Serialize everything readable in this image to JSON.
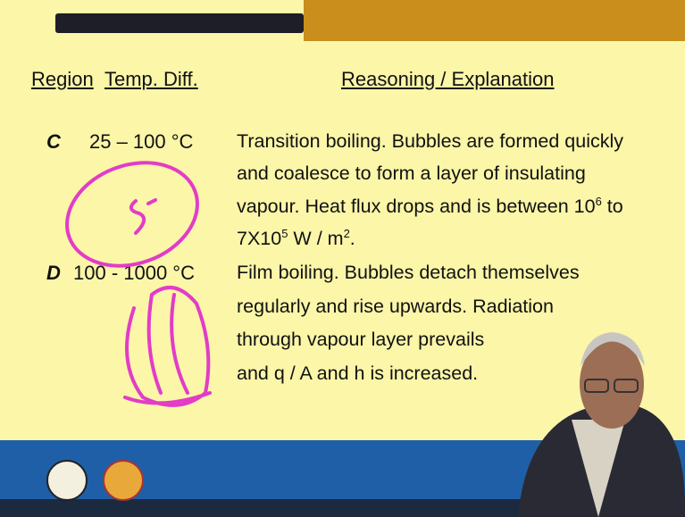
{
  "header": {
    "region": "Region",
    "temp": "Temp. Diff.",
    "reasoning": "Reasoning / Explanation"
  },
  "rows": [
    {
      "region": "C",
      "temp": "25 – 100 °C",
      "lines": [
        [
          {
            "text": "Transition boiling. Bubbles are formed quickly"
          }
        ],
        [
          {
            "text": "and coalesce to form a layer of insulating"
          }
        ],
        [
          {
            "text": "vapour. Heat flux drops and is between 10"
          },
          {
            "sup": "6"
          },
          {
            "text": " to"
          }
        ],
        [
          {
            "text": "7X10"
          },
          {
            "sup": "5"
          },
          {
            "text": " W / m"
          },
          {
            "sup": "2"
          },
          {
            "text": "."
          }
        ]
      ]
    },
    {
      "region": "D",
      "temp": "100 - 1000 °C",
      "lines": [
        [
          {
            "text": "Film boiling. Bubbles detach themselves"
          }
        ],
        [
          {
            "text": "regularly and rise upwards. Radiation"
          }
        ],
        [
          {
            "text": "through vapour layer prevails"
          }
        ],
        [
          {
            "text": "and q / A and h is increased."
          }
        ]
      ]
    }
  ]
}
